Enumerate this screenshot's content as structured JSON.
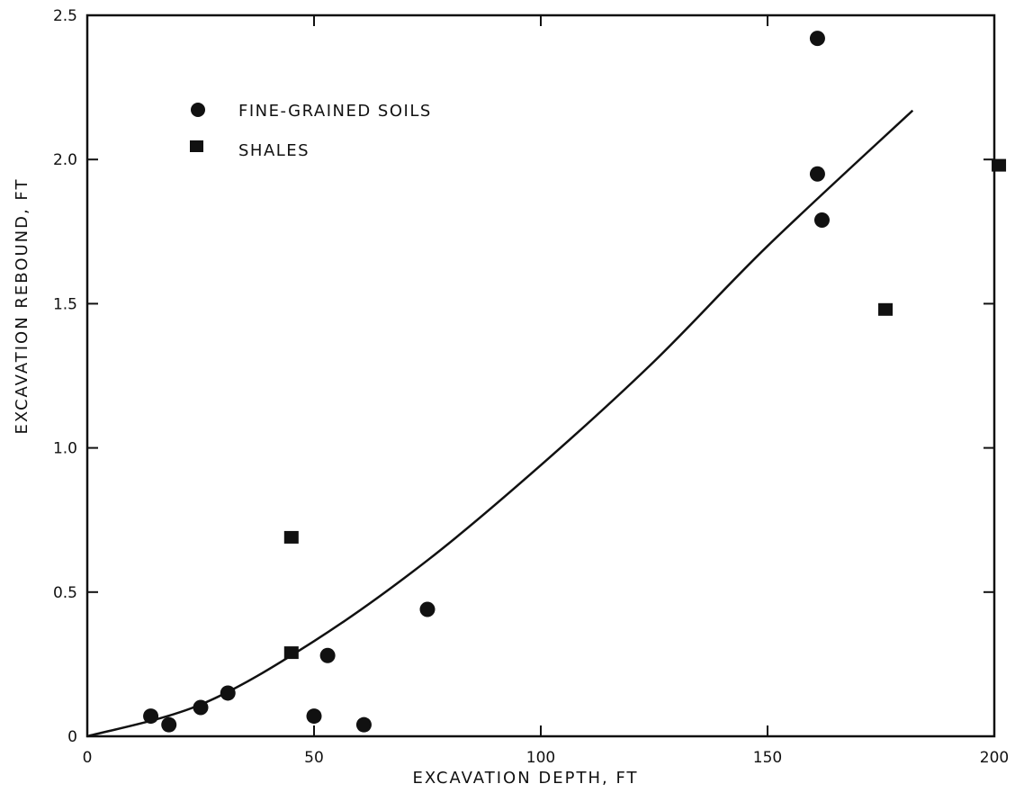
{
  "chart_data": {
    "type": "scatter",
    "xlabel": "EXCAVATION DEPTH, FT",
    "ylabel": "EXCAVATION REBOUND, FT",
    "xlim": [
      0,
      200
    ],
    "ylim": [
      0,
      2.5
    ],
    "xticks": [
      0,
      50,
      100,
      150,
      200
    ],
    "xtick_labels": [
      "0",
      "50",
      "100",
      "150",
      "200"
    ],
    "yticks": [
      0,
      0.5,
      1.0,
      1.5,
      2.0,
      2.5
    ],
    "ytick_labels": [
      "0",
      "0.5",
      "1.0",
      "1.5",
      "2.0",
      "2.5"
    ],
    "grid": false,
    "legend_position": "top-left",
    "series": [
      {
        "name": "FINE-GRAINED SOILS",
        "marker": "circle",
        "points": [
          {
            "x": 14,
            "y": 0.07
          },
          {
            "x": 18,
            "y": 0.04
          },
          {
            "x": 25,
            "y": 0.1
          },
          {
            "x": 31,
            "y": 0.15
          },
          {
            "x": 50,
            "y": 0.07
          },
          {
            "x": 53,
            "y": 0.28
          },
          {
            "x": 61,
            "y": 0.04
          },
          {
            "x": 75,
            "y": 0.44
          },
          {
            "x": 161,
            "y": 2.42
          },
          {
            "x": 161,
            "y": 1.95
          },
          {
            "x": 162,
            "y": 1.79
          }
        ]
      },
      {
        "name": "SHALES",
        "marker": "square",
        "points": [
          {
            "x": 45,
            "y": 0.69
          },
          {
            "x": 45,
            "y": 0.29
          },
          {
            "x": 176,
            "y": 1.48
          },
          {
            "x": 201,
            "y": 1.98
          }
        ]
      }
    ],
    "trend_curve": {
      "points": [
        {
          "x": 0,
          "y": 0
        },
        {
          "x": 25,
          "y": 0.11
        },
        {
          "x": 50,
          "y": 0.33
        },
        {
          "x": 75,
          "y": 0.61
        },
        {
          "x": 100,
          "y": 0.94
        },
        {
          "x": 125,
          "y": 1.3
        },
        {
          "x": 150,
          "y": 1.7
        },
        {
          "x": 182,
          "y": 2.17
        }
      ]
    }
  }
}
